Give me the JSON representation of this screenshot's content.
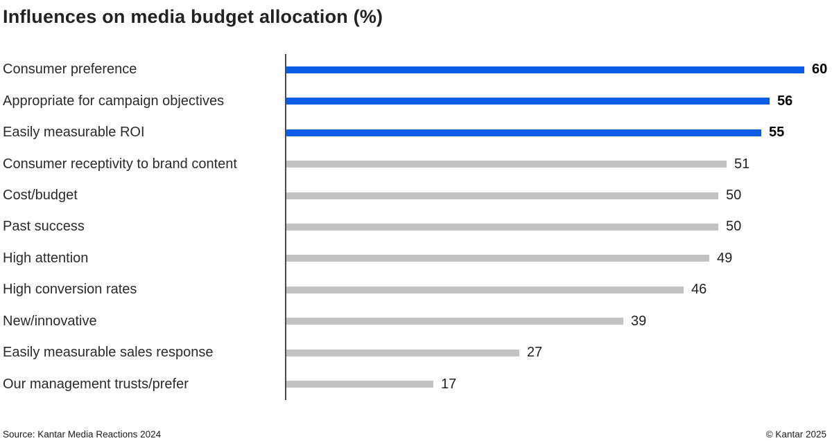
{
  "title": "Influences on media budget allocation (%)",
  "footer": {
    "source": "Source: Kantar Media Reactions 2024",
    "copyright": "© Kantar 2025"
  },
  "colors": {
    "highlight_bar": "#0b5ce6",
    "default_bar": "#c2c2c2",
    "axis": "#4a4a4a"
  },
  "chart_data": {
    "type": "bar",
    "orientation": "horizontal",
    "title": "Influences on media budget allocation (%)",
    "categories": [
      "Consumer preference",
      "Appropriate for campaign objectives",
      "Easily measurable ROI",
      "Consumer receptivity to brand content",
      "Cost/budget",
      "Past success",
      "High attention",
      "High conversion rates",
      "New/innovative",
      "Easily measurable sales response",
      "Our management trusts/prefer"
    ],
    "values": [
      60,
      56,
      55,
      51,
      50,
      50,
      49,
      46,
      39,
      27,
      17
    ],
    "highlighted": [
      true,
      true,
      true,
      false,
      false,
      false,
      false,
      false,
      false,
      false,
      false
    ],
    "value_labels_shown": true,
    "xlim": [
      0,
      62
    ],
    "grid": false,
    "legend": false
  }
}
